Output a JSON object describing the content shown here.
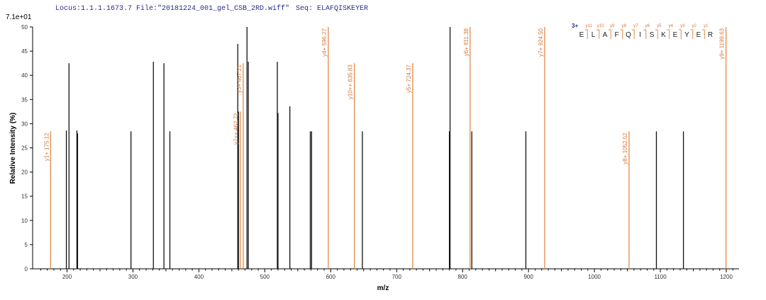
{
  "header": {
    "locus": "Locus:1.1.1.1673.7 File:\"20181224_001_gel_CSB_2RD.wiff\"",
    "seq": "Seq: ELAFQISKEYER"
  },
  "colors": {
    "matched": "#e08a4a",
    "unmatched": "#111111",
    "annotation": "#d4773a",
    "header": "#2a2a8a"
  },
  "chart_data": {
    "type": "bar",
    "subtype": "mass-spectrum stick plot",
    "scale_label": "7.1e+01",
    "xlabel": "m/z",
    "ylabel": "Relative Intensity (%)",
    "xlim": [
      155,
      1220
    ],
    "ylim": [
      0,
      50
    ],
    "xticks": [
      200,
      300,
      400,
      500,
      600,
      700,
      800,
      900,
      1000,
      1100,
      1200
    ],
    "yticks": [
      0,
      5,
      10,
      15,
      20,
      25,
      30,
      35,
      40,
      45,
      50
    ],
    "peaks_unmatched": [
      {
        "mz": 199,
        "i": 28.6
      },
      {
        "mz": 203,
        "i": 42.5
      },
      {
        "mz": 215,
        "i": 28.6
      },
      {
        "mz": 216,
        "i": 28.0
      },
      {
        "mz": 297,
        "i": 28.4
      },
      {
        "mz": 331,
        "i": 42.8
      },
      {
        "mz": 347,
        "i": 42.5
      },
      {
        "mz": 356,
        "i": 28.4
      },
      {
        "mz": 459,
        "i": 46.5
      },
      {
        "mz": 460,
        "i": 32.5
      },
      {
        "mz": 473,
        "i": 50.0
      },
      {
        "mz": 475,
        "i": 42.8
      },
      {
        "mz": 519,
        "i": 42.8
      },
      {
        "mz": 520,
        "i": 32.2
      },
      {
        "mz": 538,
        "i": 33.6
      },
      {
        "mz": 569,
        "i": 28.4
      },
      {
        "mz": 571,
        "i": 28.4
      },
      {
        "mz": 648,
        "i": 28.4
      },
      {
        "mz": 780,
        "i": 28.4
      },
      {
        "mz": 781,
        "i": 50.0
      },
      {
        "mz": 814,
        "i": 28.4
      },
      {
        "mz": 896,
        "i": 28.4
      },
      {
        "mz": 1094,
        "i": 28.4
      },
      {
        "mz": 1135,
        "i": 28.4
      }
    ],
    "peaks_matched": [
      {
        "mz": 175.12,
        "i": 28.4,
        "label": "y1+ 175.12"
      },
      {
        "mz": 462.72,
        "i": 32.5,
        "label": "y7++ 462.72"
      },
      {
        "mz": 467.21,
        "i": 42.5,
        "label": "y3+ 467.21"
      },
      {
        "mz": 596.27,
        "i": 50.0,
        "label": "y4+ 596.27"
      },
      {
        "mz": 635.83,
        "i": 42.5,
        "label": "y10++ 635.83"
      },
      {
        "mz": 724.37,
        "i": 42.5,
        "label": "y5+ 724.37"
      },
      {
        "mz": 811.38,
        "i": 50.0,
        "label": "y6+ 811.38"
      },
      {
        "mz": 924.5,
        "i": 50.0,
        "label": "y7+ 924.50"
      },
      {
        "mz": 1052.52,
        "i": 28.4,
        "label": "y8+ 1052.52"
      },
      {
        "mz": 1199.63,
        "i": 50.0,
        "label": "y9+ 1199.63"
      }
    ]
  },
  "sequence_map": {
    "charge": "3+",
    "residues": [
      "E",
      "L",
      "A",
      "F",
      "Q",
      "I",
      "S",
      "K",
      "E",
      "Y",
      "E",
      "R"
    ],
    "y_ions": [
      "y11",
      "y10",
      "y9",
      "y8",
      "y7",
      "y6",
      "y5",
      "y4",
      "y3",
      "y2",
      "y1"
    ]
  }
}
